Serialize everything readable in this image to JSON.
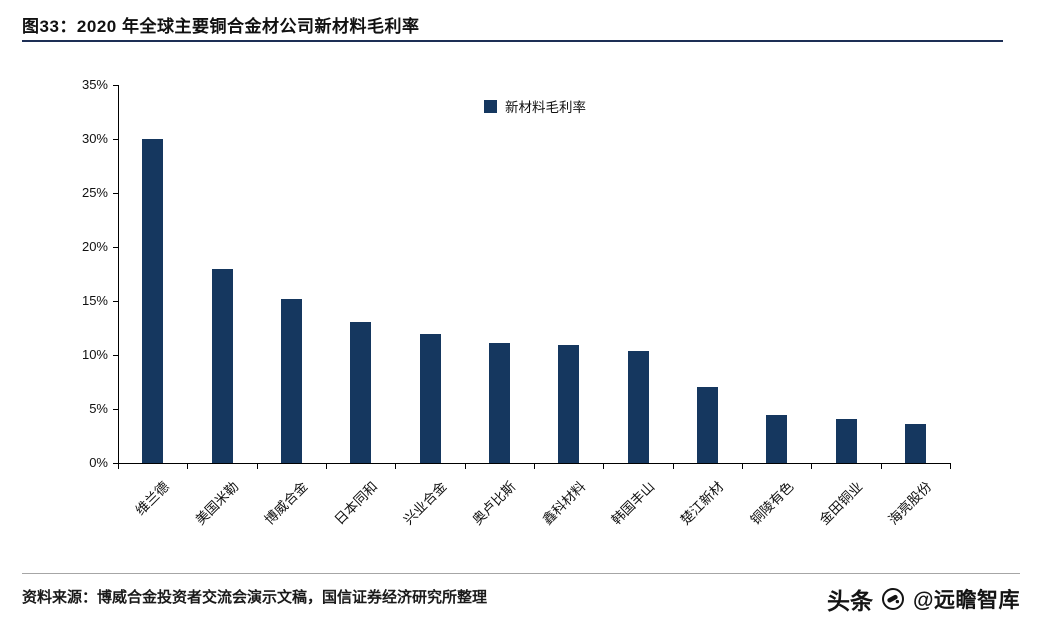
{
  "header": {
    "title": "图33：2020 年全球主要铜合金材公司新材料毛利率"
  },
  "footer": {
    "source": "资料来源：博威合金投资者交流会演示文稿，国信证券经济研究所整理",
    "watermark_brand": "头条",
    "watermark_handle": "@远瞻智库"
  },
  "colors": {
    "bar": "#15375f",
    "title_rule": "#1d2f55",
    "axis": "#000000",
    "footer_rule": "#a6a6a6"
  },
  "chart_data": {
    "type": "bar",
    "title": "",
    "legend": [
      "新材料毛利率"
    ],
    "legend_position": "top-center",
    "categories": [
      "维兰德",
      "美国米勒",
      "博威合金",
      "日本同和",
      "兴业合金",
      "奥卢比斯",
      "鑫科材料",
      "韩国丰山",
      "楚江新材",
      "铜陵有色",
      "金田铜业",
      "海亮股份"
    ],
    "values": [
      30.0,
      18.0,
      15.2,
      13.1,
      11.9,
      11.1,
      10.9,
      10.4,
      7.0,
      4.4,
      4.1,
      3.6
    ],
    "ylabel": "",
    "xlabel": "",
    "ylim": [
      0,
      35
    ],
    "ytick_step": 5,
    "ytick_format": "percent",
    "grid": false
  }
}
